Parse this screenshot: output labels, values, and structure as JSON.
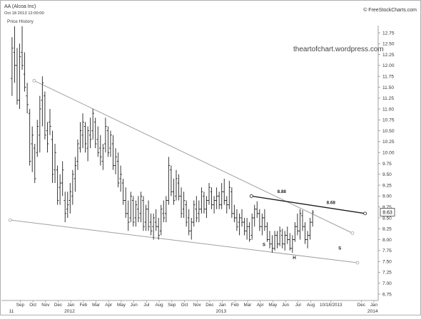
{
  "header": {
    "symbol": "AA (Alcoa Inc)",
    "date": "Oct 18 2013 12:00:00",
    "panel_label": "Price History",
    "copyright": "© FreeStockCharts.com",
    "watermark": "theartofchart.wordpress.com"
  },
  "chart_data": {
    "type": "ohlc",
    "title": "AA (Alcoa Inc)",
    "subtitle": "Price History",
    "last_price_label": "8.63",
    "last_price": 8.63,
    "ylim": [
      6.75,
      12.9
    ],
    "y_ticks": [
      6.75,
      7.0,
      7.25,
      7.5,
      7.75,
      8.0,
      8.25,
      8.5,
      8.75,
      9.0,
      9.25,
      9.5,
      9.75,
      10.0,
      10.25,
      10.5,
      10.75,
      11.0,
      11.25,
      11.5,
      11.75,
      12.0,
      12.25,
      12.5,
      12.75
    ],
    "x_month_labels": [
      {
        "label": "Sep",
        "x": 0.7
      },
      {
        "label": "Oct",
        "x": 1.7
      },
      {
        "label": "Nov",
        "x": 2.7
      },
      {
        "label": "Dec",
        "x": 3.7
      },
      {
        "label": "Jan",
        "x": 4.7
      },
      {
        "label": "Feb",
        "x": 5.7
      },
      {
        "label": "Mar",
        "x": 6.7
      },
      {
        "label": "Apr",
        "x": 7.7
      },
      {
        "label": "May",
        "x": 8.7
      },
      {
        "label": "Jun",
        "x": 9.7
      },
      {
        "label": "Jul",
        "x": 10.7
      },
      {
        "label": "Aug",
        "x": 11.7
      },
      {
        "label": "Sep",
        "x": 12.7
      },
      {
        "label": "Oct",
        "x": 13.7
      },
      {
        "label": "Nov",
        "x": 14.7
      },
      {
        "label": "Dec",
        "x": 15.7
      },
      {
        "label": "Jan",
        "x": 16.7
      },
      {
        "label": "Feb",
        "x": 17.7
      },
      {
        "label": "Mar",
        "x": 18.7
      },
      {
        "label": "Apr",
        "x": 19.7
      },
      {
        "label": "May",
        "x": 20.7
      },
      {
        "label": "Jun",
        "x": 21.7
      },
      {
        "label": "Jul",
        "x": 22.7
      },
      {
        "label": "Aug",
        "x": 23.7
      },
      {
        "label": "10/18/2013",
        "x": 25.3
      },
      {
        "label": "Dec",
        "x": 27.7
      },
      {
        "label": "Jan",
        "x": 28.7
      }
    ],
    "x_year_labels": [
      {
        "label": "11",
        "x": 0.0
      },
      {
        "label": "2012",
        "x": 4.6
      },
      {
        "label": "2013",
        "x": 16.6
      },
      {
        "label": "2014",
        "x": 28.6
      }
    ],
    "bars": [
      {
        "x": 0.05,
        "o": 11.7,
        "h": 12.65,
        "l": 11.3,
        "c": 12.4
      },
      {
        "x": 0.25,
        "o": 12.3,
        "h": 12.9,
        "l": 11.6,
        "c": 12.0
      },
      {
        "x": 0.45,
        "o": 12.0,
        "h": 12.4,
        "l": 11.1,
        "c": 11.2
      },
      {
        "x": 0.65,
        "o": 11.2,
        "h": 12.5,
        "l": 11.0,
        "c": 12.2
      },
      {
        "x": 0.85,
        "o": 12.3,
        "h": 12.9,
        "l": 11.9,
        "c": 12.0
      },
      {
        "x": 1.05,
        "o": 11.8,
        "h": 12.3,
        "l": 11.4,
        "c": 11.5
      },
      {
        "x": 1.25,
        "o": 11.3,
        "h": 11.6,
        "l": 10.9,
        "c": 11.1
      },
      {
        "x": 1.45,
        "o": 10.9,
        "h": 11.0,
        "l": 9.7,
        "c": 9.8
      },
      {
        "x": 1.65,
        "o": 10.2,
        "h": 10.6,
        "l": 9.55,
        "c": 10.4
      },
      {
        "x": 1.85,
        "o": 10.1,
        "h": 10.2,
        "l": 9.3,
        "c": 9.4
      },
      {
        "x": 2.05,
        "o": 10.0,
        "h": 10.75,
        "l": 9.9,
        "c": 10.6
      },
      {
        "x": 2.25,
        "o": 10.4,
        "h": 11.3,
        "l": 10.0,
        "c": 11.0
      },
      {
        "x": 2.45,
        "o": 11.2,
        "h": 11.75,
        "l": 10.6,
        "c": 11.6
      },
      {
        "x": 2.65,
        "o": 11.3,
        "h": 11.4,
        "l": 10.3,
        "c": 10.4
      },
      {
        "x": 2.85,
        "o": 10.5,
        "h": 10.7,
        "l": 10.0,
        "c": 10.2
      },
      {
        "x": 3.05,
        "o": 10.7,
        "h": 11.0,
        "l": 10.4,
        "c": 10.6
      },
      {
        "x": 3.25,
        "o": 10.3,
        "h": 10.5,
        "l": 9.3,
        "c": 9.5
      },
      {
        "x": 3.45,
        "o": 9.6,
        "h": 10.2,
        "l": 9.3,
        "c": 10.0
      },
      {
        "x": 3.65,
        "o": 9.6,
        "h": 9.7,
        "l": 8.8,
        "c": 8.9
      },
      {
        "x": 3.85,
        "o": 9.2,
        "h": 9.5,
        "l": 8.8,
        "c": 9.3
      },
      {
        "x": 4.05,
        "o": 9.3,
        "h": 9.8,
        "l": 9.0,
        "c": 9.6
      },
      {
        "x": 4.25,
        "o": 8.9,
        "h": 9.1,
        "l": 8.4,
        "c": 8.6
      },
      {
        "x": 4.45,
        "o": 8.7,
        "h": 9.1,
        "l": 8.5,
        "c": 8.8
      },
      {
        "x": 4.65,
        "o": 8.9,
        "h": 9.3,
        "l": 8.6,
        "c": 9.1
      },
      {
        "x": 4.85,
        "o": 9.0,
        "h": 9.6,
        "l": 8.8,
        "c": 9.5
      },
      {
        "x": 5.05,
        "o": 9.4,
        "h": 9.9,
        "l": 9.1,
        "c": 9.7
      },
      {
        "x": 5.25,
        "o": 9.8,
        "h": 10.3,
        "l": 9.6,
        "c": 10.2
      },
      {
        "x": 5.45,
        "o": 10.1,
        "h": 10.7,
        "l": 10.0,
        "c": 10.5
      },
      {
        "x": 5.65,
        "o": 10.4,
        "h": 10.9,
        "l": 10.1,
        "c": 10.7
      },
      {
        "x": 5.85,
        "o": 10.6,
        "h": 10.7,
        "l": 10.0,
        "c": 10.2
      },
      {
        "x": 6.05,
        "o": 10.1,
        "h": 10.6,
        "l": 9.8,
        "c": 10.5
      },
      {
        "x": 6.25,
        "o": 10.4,
        "h": 10.8,
        "l": 10.1,
        "c": 10.3
      },
      {
        "x": 6.45,
        "o": 10.5,
        "h": 11.0,
        "l": 10.3,
        "c": 10.9
      },
      {
        "x": 6.65,
        "o": 10.7,
        "h": 10.8,
        "l": 10.1,
        "c": 10.2
      },
      {
        "x": 6.85,
        "o": 10.3,
        "h": 10.6,
        "l": 9.9,
        "c": 10.0
      },
      {
        "x": 7.05,
        "o": 10.1,
        "h": 10.4,
        "l": 9.7,
        "c": 9.9
      },
      {
        "x": 7.25,
        "o": 9.8,
        "h": 10.2,
        "l": 9.6,
        "c": 10.1
      },
      {
        "x": 7.45,
        "o": 10.2,
        "h": 10.8,
        "l": 10.0,
        "c": 10.6
      },
      {
        "x": 7.65,
        "o": 10.5,
        "h": 10.6,
        "l": 9.9,
        "c": 10.0
      },
      {
        "x": 7.85,
        "o": 10.1,
        "h": 10.5,
        "l": 9.9,
        "c": 10.4
      },
      {
        "x": 8.05,
        "o": 10.2,
        "h": 10.4,
        "l": 9.6,
        "c": 9.7
      },
      {
        "x": 8.25,
        "o": 9.7,
        "h": 10.1,
        "l": 9.5,
        "c": 9.9
      },
      {
        "x": 8.45,
        "o": 9.8,
        "h": 10.0,
        "l": 9.2,
        "c": 9.3
      },
      {
        "x": 8.65,
        "o": 9.4,
        "h": 9.7,
        "l": 9.1,
        "c": 9.5
      },
      {
        "x": 8.85,
        "o": 9.3,
        "h": 9.4,
        "l": 8.8,
        "c": 8.9
      },
      {
        "x": 9.05,
        "o": 8.9,
        "h": 9.2,
        "l": 8.5,
        "c": 8.6
      },
      {
        "x": 9.25,
        "o": 8.6,
        "h": 8.9,
        "l": 8.2,
        "c": 8.4
      },
      {
        "x": 9.45,
        "o": 8.5,
        "h": 9.1,
        "l": 8.4,
        "c": 9.0
      },
      {
        "x": 9.65,
        "o": 8.9,
        "h": 9.0,
        "l": 8.3,
        "c": 8.4
      },
      {
        "x": 9.85,
        "o": 8.5,
        "h": 8.9,
        "l": 8.3,
        "c": 8.8
      },
      {
        "x": 10.05,
        "o": 8.7,
        "h": 9.0,
        "l": 8.4,
        "c": 8.5
      },
      {
        "x": 10.25,
        "o": 8.6,
        "h": 9.1,
        "l": 8.4,
        "c": 9.0
      },
      {
        "x": 10.45,
        "o": 8.9,
        "h": 9.0,
        "l": 8.2,
        "c": 8.3
      },
      {
        "x": 10.65,
        "o": 8.4,
        "h": 8.8,
        "l": 8.2,
        "c": 8.7
      },
      {
        "x": 10.85,
        "o": 8.7,
        "h": 8.9,
        "l": 8.2,
        "c": 8.3
      },
      {
        "x": 11.05,
        "o": 8.4,
        "h": 8.6,
        "l": 8.1,
        "c": 8.2
      },
      {
        "x": 11.25,
        "o": 8.3,
        "h": 8.6,
        "l": 8.0,
        "c": 8.5
      },
      {
        "x": 11.45,
        "o": 8.4,
        "h": 8.7,
        "l": 8.2,
        "c": 8.3
      },
      {
        "x": 11.65,
        "o": 8.3,
        "h": 8.5,
        "l": 8.0,
        "c": 8.1
      },
      {
        "x": 11.85,
        "o": 8.2,
        "h": 8.8,
        "l": 8.1,
        "c": 8.7
      },
      {
        "x": 12.05,
        "o": 8.6,
        "h": 8.9,
        "l": 8.4,
        "c": 8.5
      },
      {
        "x": 12.25,
        "o": 8.6,
        "h": 9.0,
        "l": 8.4,
        "c": 8.9
      },
      {
        "x": 12.45,
        "o": 8.9,
        "h": 9.9,
        "l": 8.8,
        "c": 9.7
      },
      {
        "x": 12.65,
        "o": 9.6,
        "h": 9.7,
        "l": 9.0,
        "c": 9.1
      },
      {
        "x": 12.85,
        "o": 9.1,
        "h": 9.4,
        "l": 8.8,
        "c": 8.9
      },
      {
        "x": 13.05,
        "o": 9.0,
        "h": 9.6,
        "l": 8.9,
        "c": 9.4
      },
      {
        "x": 13.25,
        "o": 9.3,
        "h": 9.5,
        "l": 8.9,
        "c": 9.0
      },
      {
        "x": 13.45,
        "o": 9.0,
        "h": 9.2,
        "l": 8.5,
        "c": 8.6
      },
      {
        "x": 13.65,
        "o": 8.7,
        "h": 9.1,
        "l": 8.5,
        "c": 8.9
      },
      {
        "x": 13.85,
        "o": 8.8,
        "h": 8.9,
        "l": 8.3,
        "c": 8.4
      },
      {
        "x": 14.05,
        "o": 8.5,
        "h": 8.7,
        "l": 8.1,
        "c": 8.2
      },
      {
        "x": 14.25,
        "o": 8.2,
        "h": 8.5,
        "l": 8.0,
        "c": 8.4
      },
      {
        "x": 14.45,
        "o": 8.4,
        "h": 8.9,
        "l": 8.3,
        "c": 8.8
      },
      {
        "x": 14.65,
        "o": 8.7,
        "h": 9.0,
        "l": 8.4,
        "c": 8.5
      },
      {
        "x": 14.85,
        "o": 8.6,
        "h": 8.9,
        "l": 8.4,
        "c": 8.7
      },
      {
        "x": 15.05,
        "o": 8.7,
        "h": 9.2,
        "l": 8.6,
        "c": 9.1
      },
      {
        "x": 15.25,
        "o": 9.0,
        "h": 9.1,
        "l": 8.6,
        "c": 8.7
      },
      {
        "x": 15.45,
        "o": 8.7,
        "h": 9.0,
        "l": 8.5,
        "c": 8.9
      },
      {
        "x": 15.65,
        "o": 8.9,
        "h": 9.3,
        "l": 8.8,
        "c": 9.2
      },
      {
        "x": 15.85,
        "o": 9.1,
        "h": 9.2,
        "l": 8.7,
        "c": 8.8
      },
      {
        "x": 16.05,
        "o": 8.8,
        "h": 9.0,
        "l": 8.6,
        "c": 8.9
      },
      {
        "x": 16.25,
        "o": 8.9,
        "h": 9.2,
        "l": 8.7,
        "c": 9.0
      },
      {
        "x": 16.45,
        "o": 9.0,
        "h": 9.1,
        "l": 8.7,
        "c": 8.8
      },
      {
        "x": 16.65,
        "o": 8.8,
        "h": 9.3,
        "l": 8.7,
        "c": 9.1
      },
      {
        "x": 16.85,
        "o": 9.1,
        "h": 9.4,
        "l": 8.8,
        "c": 8.9
      },
      {
        "x": 17.05,
        "o": 8.9,
        "h": 9.0,
        "l": 8.6,
        "c": 8.8
      },
      {
        "x": 17.25,
        "o": 8.8,
        "h": 9.35,
        "l": 8.7,
        "c": 9.2
      },
      {
        "x": 17.45,
        "o": 9.1,
        "h": 9.2,
        "l": 8.5,
        "c": 8.6
      },
      {
        "x": 17.65,
        "o": 8.6,
        "h": 8.8,
        "l": 8.4,
        "c": 8.5
      },
      {
        "x": 17.85,
        "o": 8.5,
        "h": 8.7,
        "l": 8.2,
        "c": 8.3
      },
      {
        "x": 18.05,
        "o": 8.4,
        "h": 8.6,
        "l": 8.1,
        "c": 8.5
      },
      {
        "x": 18.25,
        "o": 8.5,
        "h": 8.7,
        "l": 8.3,
        "c": 8.4
      },
      {
        "x": 18.45,
        "o": 8.4,
        "h": 8.5,
        "l": 8.1,
        "c": 8.2
      },
      {
        "x": 18.65,
        "o": 8.2,
        "h": 8.5,
        "l": 8.0,
        "c": 8.3
      },
      {
        "x": 18.85,
        "o": 8.3,
        "h": 8.4,
        "l": 7.95,
        "c": 8.0
      },
      {
        "x": 19.05,
        "o": 8.1,
        "h": 8.6,
        "l": 8.0,
        "c": 8.5
      },
      {
        "x": 19.25,
        "o": 8.5,
        "h": 8.8,
        "l": 8.3,
        "c": 8.7
      },
      {
        "x": 19.45,
        "o": 8.7,
        "h": 8.88,
        "l": 8.5,
        "c": 8.6
      },
      {
        "x": 19.65,
        "o": 8.6,
        "h": 8.7,
        "l": 8.2,
        "c": 8.3
      },
      {
        "x": 19.85,
        "o": 8.3,
        "h": 8.6,
        "l": 8.1,
        "c": 8.5
      },
      {
        "x": 20.05,
        "o": 8.5,
        "h": 8.7,
        "l": 8.2,
        "c": 8.3
      },
      {
        "x": 20.25,
        "o": 8.3,
        "h": 8.4,
        "l": 7.95,
        "c": 8.0
      },
      {
        "x": 20.45,
        "o": 8.0,
        "h": 8.2,
        "l": 7.8,
        "c": 7.9
      },
      {
        "x": 20.65,
        "o": 7.9,
        "h": 8.1,
        "l": 7.7,
        "c": 7.8
      },
      {
        "x": 20.85,
        "o": 7.8,
        "h": 8.2,
        "l": 7.75,
        "c": 8.1
      },
      {
        "x": 21.05,
        "o": 8.1,
        "h": 8.2,
        "l": 7.8,
        "c": 7.9
      },
      {
        "x": 21.25,
        "o": 7.9,
        "h": 8.3,
        "l": 7.85,
        "c": 8.2
      },
      {
        "x": 21.45,
        "o": 8.1,
        "h": 8.25,
        "l": 7.8,
        "c": 7.9
      },
      {
        "x": 21.65,
        "o": 7.9,
        "h": 8.2,
        "l": 7.75,
        "c": 8.1
      },
      {
        "x": 21.85,
        "o": 8.1,
        "h": 8.3,
        "l": 7.9,
        "c": 8.0
      },
      {
        "x": 22.05,
        "o": 8.0,
        "h": 8.15,
        "l": 7.75,
        "c": 7.8
      },
      {
        "x": 22.25,
        "o": 7.8,
        "h": 8.1,
        "l": 7.7,
        "c": 8.0
      },
      {
        "x": 22.45,
        "o": 8.0,
        "h": 8.4,
        "l": 7.95,
        "c": 8.3
      },
      {
        "x": 22.65,
        "o": 8.3,
        "h": 8.6,
        "l": 8.1,
        "c": 8.2
      },
      {
        "x": 22.85,
        "o": 8.2,
        "h": 8.7,
        "l": 8.0,
        "c": 8.6
      },
      {
        "x": 23.05,
        "o": 8.55,
        "h": 8.68,
        "l": 8.2,
        "c": 8.3
      },
      {
        "x": 23.25,
        "o": 8.3,
        "h": 8.4,
        "l": 7.9,
        "c": 8.0
      },
      {
        "x": 23.45,
        "o": 8.0,
        "h": 8.2,
        "l": 7.8,
        "c": 8.1
      },
      {
        "x": 23.65,
        "o": 8.1,
        "h": 8.5,
        "l": 8.0,
        "c": 8.4
      },
      {
        "x": 23.85,
        "o": 8.4,
        "h": 8.68,
        "l": 8.3,
        "c": 8.63
      }
    ],
    "trendlines": [
      {
        "name": "upper-falling",
        "x1": 1.8,
        "y1": 11.65,
        "x2": 27.0,
        "y2": 8.15,
        "color": "#a0a0a0",
        "end_markers": true
      },
      {
        "name": "lower-falling",
        "x1": -0.1,
        "y1": 8.45,
        "x2": 27.4,
        "y2": 7.47,
        "color": "#a0a0a0",
        "end_markers": true
      },
      {
        "name": "neckline",
        "x1": 19.0,
        "y1": 9.0,
        "x2": 28.0,
        "y2": 8.6,
        "color": "#1a1a1a",
        "end_markers": true
      }
    ],
    "annotations": [
      {
        "text": "8.88",
        "x": 21.4,
        "y": 9.07
      },
      {
        "text": "8.68",
        "x": 25.3,
        "y": 8.82
      },
      {
        "text": "S",
        "x": 20.0,
        "y": 7.85
      },
      {
        "text": "H",
        "x": 22.4,
        "y": 7.55
      },
      {
        "text": "S",
        "x": 26.0,
        "y": 7.77
      }
    ],
    "grid": false,
    "colors": {
      "bar": "#222222",
      "trend": "#a0a0a0",
      "neckline": "#1a1a1a",
      "axis": "#555555"
    }
  }
}
